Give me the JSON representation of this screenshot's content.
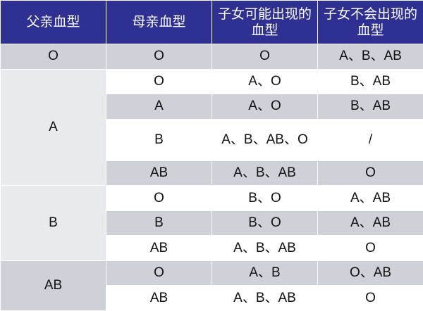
{
  "headers": {
    "father": "父亲血型",
    "mother": "母亲血型",
    "possible": "子女可能出现的血型",
    "impossible": "子女不会出现的血型"
  },
  "groups": {
    "g0": {
      "father": "O"
    },
    "g1": {
      "father": "A"
    },
    "g2": {
      "father": "B"
    },
    "g3": {
      "father": "AB"
    }
  },
  "rows": [
    {
      "mother": "O",
      "possible": "O",
      "impossible": "A、B、AB"
    },
    {
      "mother": "O",
      "possible": "A、O",
      "impossible": "B、AB"
    },
    {
      "mother": "A",
      "possible": "A、O",
      "impossible": "B、AB"
    },
    {
      "mother": "B",
      "possible": "A、B、AB、O",
      "impossible": "/"
    },
    {
      "mother": "AB",
      "possible": "A、B、AB",
      "impossible": "O"
    },
    {
      "mother": "O",
      "possible": "B、O",
      "impossible": "A、AB"
    },
    {
      "mother": "B",
      "possible": "B、O",
      "impossible": "A、AB"
    },
    {
      "mother": "AB",
      "possible": "A、B、AB",
      "impossible": "O"
    },
    {
      "mother": "O",
      "possible": "A、B",
      "impossible": "O、AB"
    },
    {
      "mother": "AB",
      "possible": "A、B、AB",
      "impossible": "O"
    }
  ]
}
